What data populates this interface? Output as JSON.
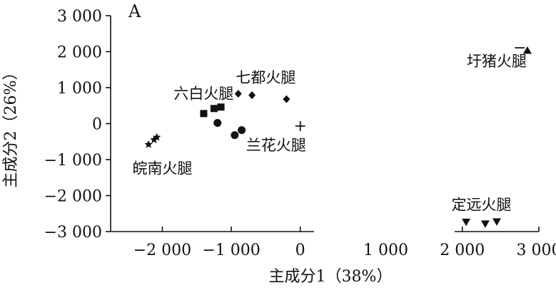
{
  "chart_data": {
    "type": "scatter",
    "panel_label": "A",
    "xlabel": "主成分1（38%）",
    "ylabel": "主成分2（26%）",
    "xlim": [
      -2750,
      3000
    ],
    "ylim": [
      -3000,
      3000
    ],
    "x_axis_break": [
      200,
      1900
    ],
    "x_ticks": [
      {
        "value": -2000,
        "label": "−2 000"
      },
      {
        "value": -1000,
        "label": "−1 000"
      },
      {
        "value": 0,
        "label": "0"
      },
      {
        "value": 1000,
        "label": "1 000"
      },
      {
        "value": 2000,
        "label": "2 000"
      },
      {
        "value": 3000,
        "label": "3 000"
      }
    ],
    "y_ticks": [
      {
        "value": 3000,
        "label": "3 000"
      },
      {
        "value": 2000,
        "label": "2 000"
      },
      {
        "value": 1000,
        "label": "1 000"
      },
      {
        "value": 0,
        "label": "0"
      },
      {
        "value": -1000,
        "label": "−1 000"
      },
      {
        "value": -2000,
        "label": "−2 000"
      },
      {
        "value": -3000,
        "label": "−3 000"
      }
    ],
    "series": [
      {
        "name": "六白火腿",
        "marker": "square",
        "points": [
          [
            -1400,
            280
          ],
          [
            -1250,
            420
          ],
          [
            -1150,
            460
          ]
        ],
        "label_at": [
          -1400,
          850
        ]
      },
      {
        "name": "七都火腿",
        "marker": "diamond",
        "points": [
          [
            -900,
            830
          ],
          [
            -700,
            790
          ],
          [
            -200,
            680
          ]
        ],
        "label_at": [
          -500,
          1300
        ]
      },
      {
        "name": "兰花火腿",
        "marker": "circle",
        "points": [
          [
            -1200,
            20
          ],
          [
            -950,
            -320
          ],
          [
            -850,
            -180
          ]
        ],
        "label_at": [
          -350,
          -580
        ]
      },
      {
        "name": "皖南火腿",
        "marker": "star",
        "points": [
          [
            -2200,
            -580
          ],
          [
            -2120,
            -450
          ],
          [
            -2080,
            -380
          ]
        ],
        "label_at": [
          -2000,
          -1230
        ]
      },
      {
        "name": "圩猪火腿",
        "marker": "triangle-up",
        "points": [
          [
            2850,
            2030
          ]
        ],
        "label_at": [
          2450,
          1750
        ]
      },
      {
        "name": "定远火腿",
        "marker": "triangle-down",
        "points": [
          [
            2050,
            -2730
          ],
          [
            2300,
            -2780
          ],
          [
            2450,
            -2720
          ]
        ],
        "label_at": [
          2250,
          -2240
        ]
      }
    ],
    "annotations": [
      {
        "text": "+",
        "at": [
          0,
          -30
        ]
      },
      {
        "text": "−",
        "at": [
          2750,
          2150
        ]
      }
    ]
  }
}
